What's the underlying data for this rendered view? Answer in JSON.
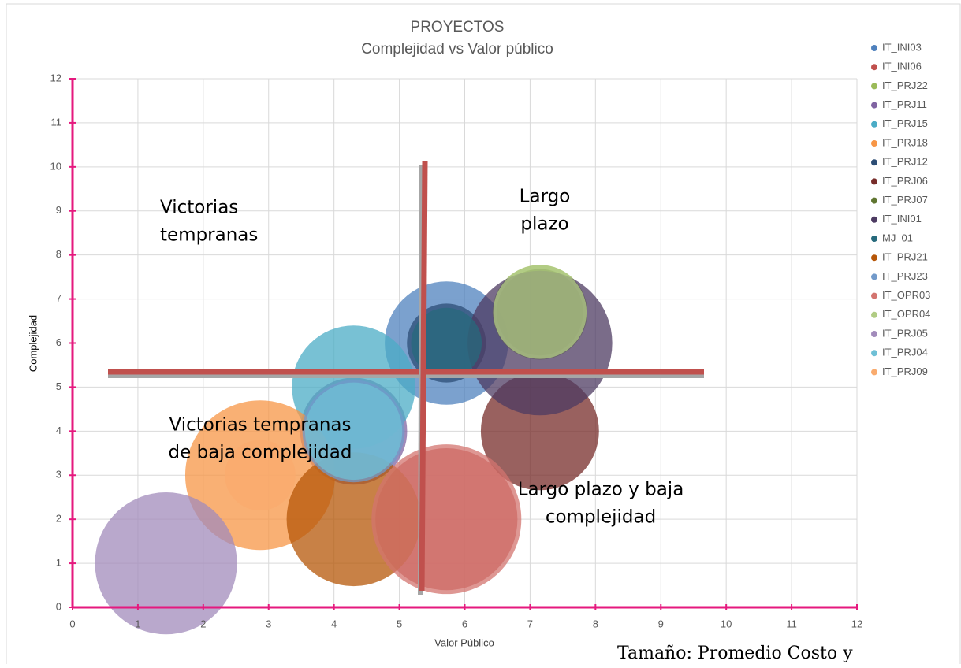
{
  "chart_data": {
    "type": "bubble",
    "title": "PROYECTOS",
    "subtitle": "Complejidad vs Valor público",
    "x_label": "Valor Público",
    "y_label": "Complejidad",
    "xlim": [
      0,
      12
    ],
    "xticks": [
      0,
      1,
      2,
      3,
      4,
      5,
      6,
      7,
      8,
      9,
      10,
      11,
      12
    ],
    "ylim": [
      0,
      12
    ],
    "yticks": [
      0,
      1,
      2,
      3,
      4,
      5,
      6,
      7,
      8,
      9,
      10,
      11,
      12
    ],
    "grid": true,
    "legend": "right",
    "axis_color": "#e5197e",
    "series": [
      {
        "name": "IT_INI03",
        "color": "#4f81bd",
        "x": [
          5.72
        ],
        "values": [
          6
        ],
        "sizes": [
          6.1
        ]
      },
      {
        "name": "IT_INI06",
        "color": "#c0504d",
        "x": [
          5.72
        ],
        "values": [
          2
        ],
        "sizes": [
          8.1
        ]
      },
      {
        "name": "IT_PRJ22",
        "color": "#9bbb59",
        "x": [
          7.15
        ],
        "values": [
          6.7
        ],
        "sizes": [
          3.6
        ]
      },
      {
        "name": "IT_PRJ11",
        "color": "#8064a2",
        "x": [
          4.3
        ],
        "values": [
          4
        ],
        "sizes": [
          4.6
        ]
      },
      {
        "name": "IT_PRJ15",
        "color": "#4bacc6",
        "x": [
          4.3
        ],
        "values": [
          5
        ],
        "sizes": [
          6.1
        ]
      },
      {
        "name": "IT_PRJ18",
        "color": "#f79646",
        "x": [
          2.87
        ],
        "values": [
          3
        ],
        "sizes": [
          9
        ]
      },
      {
        "name": "IT_PRJ12",
        "color": "#2c4d75",
        "x": [
          5.72
        ],
        "values": [
          6
        ],
        "sizes": [
          2.5
        ]
      },
      {
        "name": "IT_PRJ06",
        "color": "#772c2a",
        "x": [
          7.15
        ],
        "values": [
          4
        ],
        "sizes": [
          5.6
        ]
      },
      {
        "name": "IT_PRJ07",
        "color": "#5f7530",
        "x": [
          7.15
        ],
        "values": [
          6.7
        ],
        "sizes": [
          3
        ]
      },
      {
        "name": "IT_INI01",
        "color": "#4d3b62",
        "x": [
          7.15
        ],
        "values": [
          6
        ],
        "sizes": [
          8.4
        ]
      },
      {
        "name": "MJ_01",
        "color": "#276a7c",
        "x": [
          5.72
        ],
        "values": [
          6
        ],
        "sizes": [
          2
        ]
      },
      {
        "name": "IT_PRJ21",
        "color": "#b65708",
        "x": [
          4.3
        ],
        "values": [
          2
        ],
        "sizes": [
          7.2
        ]
      },
      {
        "name": "IT_PRJ23",
        "color": "#729aca",
        "x": [
          4.3
        ],
        "values": [
          4
        ],
        "sizes": [
          4.2
        ]
      },
      {
        "name": "IT_OPR03",
        "color": "#d3746f",
        "x": [
          5.72
        ],
        "values": [
          2
        ],
        "sizes": [
          9
        ]
      },
      {
        "name": "IT_OPR04",
        "color": "#b1cc84",
        "x": [
          7.15
        ],
        "values": [
          6.7
        ],
        "sizes": [
          3.5
        ]
      },
      {
        "name": "IT_PRJ05",
        "color": "#a28bbb",
        "x": [
          1.43
        ],
        "values": [
          1
        ],
        "sizes": [
          8.1
        ]
      },
      {
        "name": "IT_PRJ04",
        "color": "#6fc0d6",
        "x": [
          4.3
        ],
        "values": [
          4
        ],
        "sizes": [
          3.8
        ]
      },
      {
        "name": "IT_PRJ09",
        "color": "#f9ab6e",
        "x": [
          2.87
        ],
        "values": [
          3
        ],
        "sizes": [
          2
        ]
      }
    ],
    "annotations": [
      [
        "Victorias",
        "tempranas"
      ],
      [
        "Largo",
        "plazo"
      ],
      [
        "Victorias tempranas",
        "de baja complejidad"
      ],
      [
        "Largo plazo y baja",
        "complejidad"
      ]
    ],
    "note": "Tamaño: Promedio Costo y"
  }
}
